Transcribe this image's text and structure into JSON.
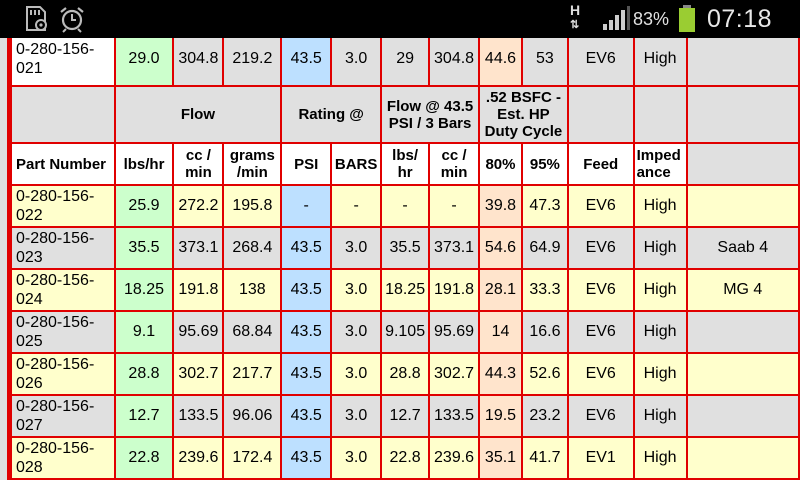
{
  "status_bar": {
    "left_icons": [
      "sd-settings-icon",
      "alarm-clock-icon"
    ],
    "network_label": "H",
    "battery_percent": "83%",
    "battery_color": "#9acd32",
    "time": "07:18"
  },
  "table": {
    "header_groups": {
      "flow": "Flow",
      "rating": "Rating @",
      "flow_at": "Flow @ 43.5 PSI / 3 Bars",
      "bsfc": ".52 BSFC - Est. HP Duty Cycle"
    },
    "columns": {
      "part_number": "Part Number",
      "lbs_hr": "lbs/hr",
      "cc_min": "cc / min",
      "grams_min": "grams /min",
      "psi": "PSI",
      "bars": "BARS",
      "lbs_hr2": "lbs/ hr",
      "cc_min2": "cc / min",
      "p80": "80%",
      "p95": "95%",
      "feed": "Feed",
      "impedance": "Imped ance"
    },
    "top_row": {
      "part": "0-280-156-021",
      "lbs_hr": "29.0",
      "cc_min": "304.8",
      "grams_min": "219.2",
      "psi": "43.5",
      "bars": "3.0",
      "lbs_hr2": "29",
      "cc_min2": "304.8",
      "p80": "44.6",
      "p95": "53",
      "feed": "EV6",
      "impedance": "High",
      "application": ""
    },
    "rows": [
      {
        "part": "0-280-156-022",
        "lbs_hr": "25.9",
        "cc_min": "272.2",
        "grams_min": "195.8",
        "psi": "-",
        "bars": "-",
        "lbs_hr2": "-",
        "cc_min2": "-",
        "p80": "39.8",
        "p95": "47.3",
        "feed": "EV6",
        "impedance": "High",
        "application": ""
      },
      {
        "part": "0-280-156-023",
        "lbs_hr": "35.5",
        "cc_min": "373.1",
        "grams_min": "268.4",
        "psi": "43.5",
        "bars": "3.0",
        "lbs_hr2": "35.5",
        "cc_min2": "373.1",
        "p80": "54.6",
        "p95": "64.9",
        "feed": "EV6",
        "impedance": "High",
        "application": "Saab 4"
      },
      {
        "part": "0-280-156-024",
        "lbs_hr": "18.25",
        "cc_min": "191.8",
        "grams_min": "138",
        "psi": "43.5",
        "bars": "3.0",
        "lbs_hr2": "18.25",
        "cc_min2": "191.8",
        "p80": "28.1",
        "p95": "33.3",
        "feed": "EV6",
        "impedance": "High",
        "application": "MG 4"
      },
      {
        "part": "0-280-156-025",
        "lbs_hr": "9.1",
        "cc_min": "95.69",
        "grams_min": "68.84",
        "psi": "43.5",
        "bars": "3.0",
        "lbs_hr2": "9.105",
        "cc_min2": "95.69",
        "p80": "14",
        "p95": "16.6",
        "feed": "EV6",
        "impedance": "High",
        "application": ""
      },
      {
        "part": "0-280-156-026",
        "lbs_hr": "28.8",
        "cc_min": "302.7",
        "grams_min": "217.7",
        "psi": "43.5",
        "bars": "3.0",
        "lbs_hr2": "28.8",
        "cc_min2": "302.7",
        "p80": "44.3",
        "p95": "52.6",
        "feed": "EV6",
        "impedance": "High",
        "application": ""
      },
      {
        "part": "0-280-156-027",
        "lbs_hr": "12.7",
        "cc_min": "133.5",
        "grams_min": "96.06",
        "psi": "43.5",
        "bars": "3.0",
        "lbs_hr2": "12.7",
        "cc_min2": "133.5",
        "p80": "19.5",
        "p95": "23.2",
        "feed": "EV6",
        "impedance": "High",
        "application": ""
      },
      {
        "part": "0-280-156-028",
        "lbs_hr": "22.8",
        "cc_min": "239.6",
        "grams_min": "172.4",
        "psi": "43.5",
        "bars": "3.0",
        "lbs_hr2": "22.8",
        "cc_min2": "239.6",
        "p80": "35.1",
        "p95": "41.7",
        "feed": "EV1",
        "impedance": "High",
        "application": ""
      }
    ]
  }
}
